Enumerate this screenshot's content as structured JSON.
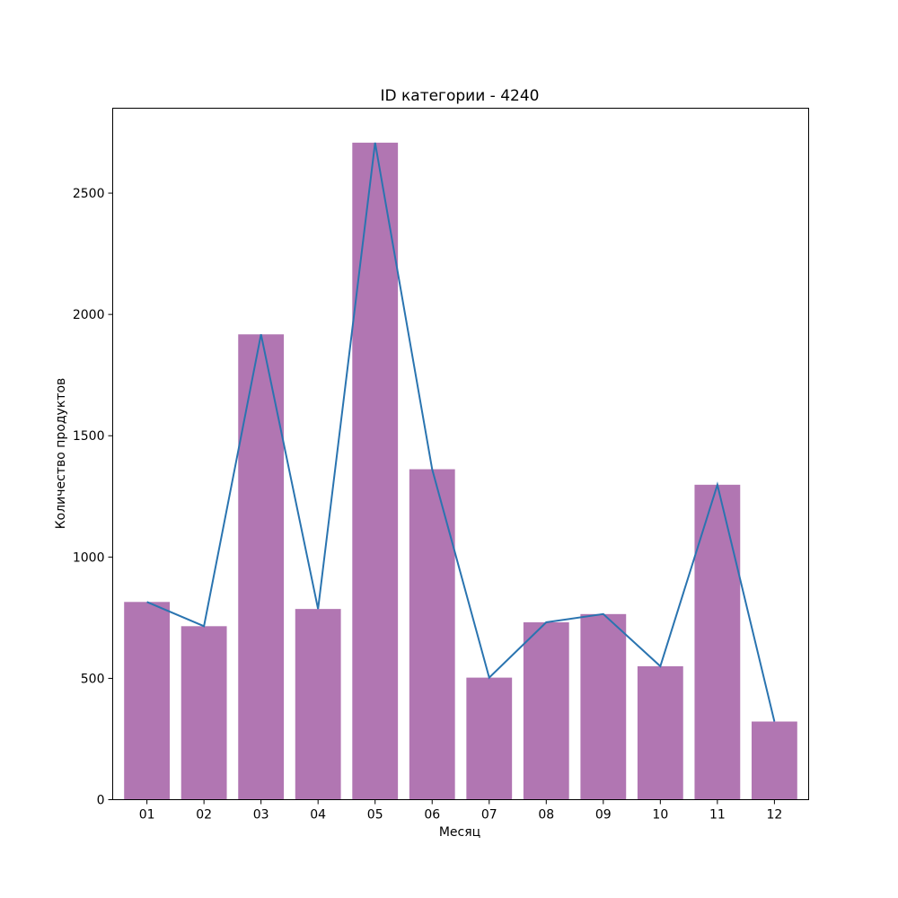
{
  "chart_data": {
    "type": "bar",
    "title": "ID категории - 4240",
    "xlabel": "Месяц",
    "ylabel": "Количество продуктов",
    "categories": [
      "01",
      "02",
      "03",
      "04",
      "05",
      "06",
      "07",
      "08",
      "09",
      "10",
      "11",
      "12"
    ],
    "values": [
      815,
      715,
      1918,
      786,
      2708,
      1362,
      503,
      731,
      765,
      550,
      1298,
      322
    ],
    "ylim": [
      0,
      2850
    ],
    "yticks": [
      0,
      500,
      1000,
      1500,
      2000,
      2500
    ],
    "grid": false,
    "legend": "none",
    "overlay": "line through bar tops",
    "colors": {
      "bar": "#b176b2",
      "line": "#2a74b0"
    }
  }
}
